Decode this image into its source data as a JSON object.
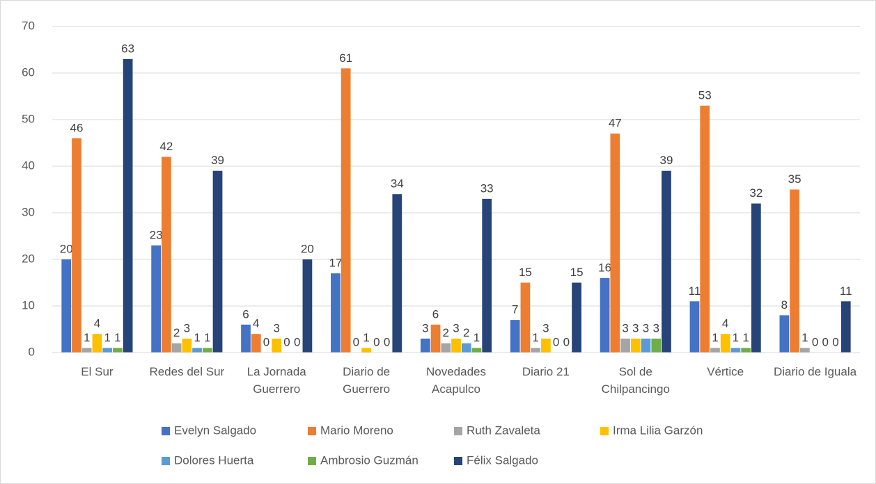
{
  "chart_data": {
    "type": "bar",
    "categories": [
      "El Sur",
      "Redes del Sur",
      "La Jornada Guerrero",
      "Diario de Guerrero",
      "Novedades Acapulco",
      "Diario 21",
      "Sol de Chilpancingo",
      "Vértice",
      "Diario de Iguala"
    ],
    "series": [
      {
        "name": "Evelyn Salgado",
        "color": "#4472c4",
        "values": [
          20,
          23,
          6,
          17,
          3,
          7,
          16,
          11,
          8
        ]
      },
      {
        "name": "Mario Moreno",
        "color": "#ed7d31",
        "values": [
          46,
          42,
          4,
          61,
          6,
          15,
          47,
          53,
          35
        ]
      },
      {
        "name": "Ruth Zavaleta",
        "color": "#a5a5a5",
        "values": [
          1,
          2,
          0,
          0,
          2,
          1,
          3,
          1,
          1
        ]
      },
      {
        "name": "Irma Lilia Garzón",
        "color": "#ffc000",
        "values": [
          4,
          3,
          3,
          1,
          3,
          3,
          3,
          4,
          0
        ]
      },
      {
        "name": "Dolores Huerta",
        "color": "#5b9bd5",
        "values": [
          1,
          1,
          0,
          0,
          2,
          0,
          3,
          1,
          0
        ]
      },
      {
        "name": "Ambrosio Guzmán",
        "color": "#70ad47",
        "values": [
          1,
          1,
          0,
          0,
          1,
          0,
          3,
          1,
          0
        ]
      },
      {
        "name": "Félix Salgado",
        "color": "#264478",
        "values": [
          63,
          39,
          20,
          34,
          33,
          15,
          39,
          32,
          11
        ]
      }
    ],
    "ylim": [
      0,
      70
    ],
    "yticks": [
      0,
      10,
      20,
      30,
      40,
      50,
      60,
      70
    ],
    "grid": true,
    "legend": "bottom"
  }
}
